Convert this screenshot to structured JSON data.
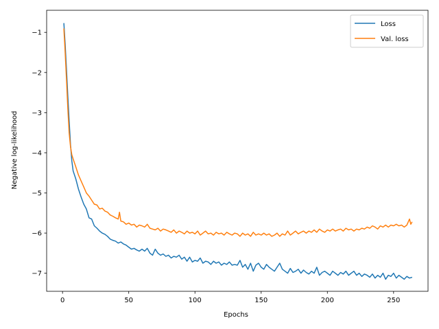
{
  "chart_data": {
    "type": "line",
    "xlabel": "Epochs",
    "ylabel": "Negative log-likelihood",
    "xlim": [
      -12,
      276
    ],
    "ylim": [
      -7.45,
      -0.45
    ],
    "xticks": [
      0,
      50,
      100,
      150,
      200,
      250
    ],
    "yticks": [
      -1,
      -2,
      -3,
      -4,
      -5,
      -6,
      -7
    ],
    "grid": false,
    "legend_position": "top-right",
    "series": [
      {
        "name": "Loss",
        "color": "#1f77b4",
        "points": [
          [
            1,
            -0.77
          ],
          [
            2,
            -1.3
          ],
          [
            3,
            -1.95
          ],
          [
            4,
            -2.6
          ],
          [
            5,
            -3.2
          ],
          [
            6,
            -3.8
          ],
          [
            7,
            -4.2
          ],
          [
            8,
            -4.45
          ],
          [
            10,
            -4.65
          ],
          [
            12,
            -4.9
          ],
          [
            14,
            -5.1
          ],
          [
            16,
            -5.28
          ],
          [
            18,
            -5.4
          ],
          [
            20,
            -5.62
          ],
          [
            22,
            -5.65
          ],
          [
            24,
            -5.82
          ],
          [
            26,
            -5.88
          ],
          [
            28,
            -5.95
          ],
          [
            30,
            -6.0
          ],
          [
            32,
            -6.03
          ],
          [
            34,
            -6.08
          ],
          [
            36,
            -6.15
          ],
          [
            38,
            -6.18
          ],
          [
            40,
            -6.2
          ],
          [
            42,
            -6.25
          ],
          [
            44,
            -6.22
          ],
          [
            46,
            -6.27
          ],
          [
            48,
            -6.3
          ],
          [
            50,
            -6.35
          ],
          [
            52,
            -6.4
          ],
          [
            54,
            -6.38
          ],
          [
            56,
            -6.42
          ],
          [
            58,
            -6.45
          ],
          [
            60,
            -6.4
          ],
          [
            62,
            -6.45
          ],
          [
            64,
            -6.38
          ],
          [
            66,
            -6.5
          ],
          [
            68,
            -6.55
          ],
          [
            70,
            -6.4
          ],
          [
            72,
            -6.5
          ],
          [
            74,
            -6.55
          ],
          [
            76,
            -6.52
          ],
          [
            78,
            -6.58
          ],
          [
            80,
            -6.55
          ],
          [
            82,
            -6.62
          ],
          [
            84,
            -6.58
          ],
          [
            86,
            -6.6
          ],
          [
            88,
            -6.55
          ],
          [
            90,
            -6.65
          ],
          [
            92,
            -6.6
          ],
          [
            94,
            -6.7
          ],
          [
            96,
            -6.6
          ],
          [
            98,
            -6.72
          ],
          [
            100,
            -6.68
          ],
          [
            102,
            -6.7
          ],
          [
            104,
            -6.62
          ],
          [
            106,
            -6.75
          ],
          [
            108,
            -6.7
          ],
          [
            110,
            -6.72
          ],
          [
            112,
            -6.78
          ],
          [
            114,
            -6.7
          ],
          [
            116,
            -6.75
          ],
          [
            118,
            -6.72
          ],
          [
            120,
            -6.8
          ],
          [
            122,
            -6.75
          ],
          [
            124,
            -6.78
          ],
          [
            126,
            -6.72
          ],
          [
            128,
            -6.8
          ],
          [
            130,
            -6.78
          ],
          [
            132,
            -6.8
          ],
          [
            134,
            -6.68
          ],
          [
            136,
            -6.85
          ],
          [
            138,
            -6.78
          ],
          [
            140,
            -6.9
          ],
          [
            142,
            -6.75
          ],
          [
            144,
            -6.95
          ],
          [
            146,
            -6.8
          ],
          [
            148,
            -6.75
          ],
          [
            150,
            -6.85
          ],
          [
            152,
            -6.9
          ],
          [
            154,
            -6.78
          ],
          [
            156,
            -6.85
          ],
          [
            158,
            -6.9
          ],
          [
            160,
            -6.95
          ],
          [
            162,
            -6.85
          ],
          [
            164,
            -6.75
          ],
          [
            166,
            -6.9
          ],
          [
            168,
            -6.95
          ],
          [
            170,
            -7.0
          ],
          [
            172,
            -6.88
          ],
          [
            174,
            -6.98
          ],
          [
            176,
            -6.95
          ],
          [
            178,
            -6.9
          ],
          [
            180,
            -7.0
          ],
          [
            182,
            -6.92
          ],
          [
            184,
            -6.98
          ],
          [
            186,
            -7.02
          ],
          [
            188,
            -6.95
          ],
          [
            190,
            -7.0
          ],
          [
            192,
            -6.85
          ],
          [
            194,
            -7.05
          ],
          [
            196,
            -6.98
          ],
          [
            198,
            -6.95
          ],
          [
            200,
            -7.0
          ],
          [
            202,
            -7.05
          ],
          [
            204,
            -6.95
          ],
          [
            206,
            -7.0
          ],
          [
            208,
            -7.05
          ],
          [
            210,
            -6.98
          ],
          [
            212,
            -7.02
          ],
          [
            214,
            -6.95
          ],
          [
            216,
            -7.05
          ],
          [
            218,
            -7.0
          ],
          [
            220,
            -6.95
          ],
          [
            222,
            -7.05
          ],
          [
            224,
            -7.0
          ],
          [
            226,
            -7.08
          ],
          [
            228,
            -7.02
          ],
          [
            230,
            -7.05
          ],
          [
            232,
            -7.1
          ],
          [
            234,
            -7.02
          ],
          [
            236,
            -7.12
          ],
          [
            238,
            -7.05
          ],
          [
            240,
            -7.1
          ],
          [
            242,
            -7.0
          ],
          [
            244,
            -7.15
          ],
          [
            246,
            -7.05
          ],
          [
            248,
            -7.08
          ],
          [
            250,
            -7.0
          ],
          [
            252,
            -7.12
          ],
          [
            254,
            -7.05
          ],
          [
            256,
            -7.1
          ],
          [
            258,
            -7.15
          ],
          [
            260,
            -7.08
          ],
          [
            262,
            -7.12
          ],
          [
            264,
            -7.1
          ]
        ]
      },
      {
        "name": "Val. loss",
        "color": "#ff7f0e",
        "points": [
          [
            1,
            -0.9
          ],
          [
            2,
            -1.5
          ],
          [
            3,
            -2.2
          ],
          [
            4,
            -2.9
          ],
          [
            5,
            -3.5
          ],
          [
            6,
            -3.85
          ],
          [
            7,
            -4.05
          ],
          [
            8,
            -4.15
          ],
          [
            10,
            -4.35
          ],
          [
            12,
            -4.55
          ],
          [
            14,
            -4.7
          ],
          [
            16,
            -4.85
          ],
          [
            18,
            -5.0
          ],
          [
            20,
            -5.08
          ],
          [
            22,
            -5.18
          ],
          [
            24,
            -5.28
          ],
          [
            26,
            -5.3
          ],
          [
            28,
            -5.4
          ],
          [
            30,
            -5.38
          ],
          [
            32,
            -5.45
          ],
          [
            34,
            -5.48
          ],
          [
            36,
            -5.55
          ],
          [
            38,
            -5.58
          ],
          [
            40,
            -5.62
          ],
          [
            42,
            -5.65
          ],
          [
            43,
            -5.48
          ],
          [
            44,
            -5.7
          ],
          [
            46,
            -5.72
          ],
          [
            48,
            -5.78
          ],
          [
            50,
            -5.75
          ],
          [
            52,
            -5.8
          ],
          [
            54,
            -5.78
          ],
          [
            56,
            -5.85
          ],
          [
            58,
            -5.8
          ],
          [
            60,
            -5.82
          ],
          [
            62,
            -5.85
          ],
          [
            64,
            -5.78
          ],
          [
            66,
            -5.88
          ],
          [
            68,
            -5.9
          ],
          [
            70,
            -5.92
          ],
          [
            72,
            -5.88
          ],
          [
            74,
            -5.95
          ],
          [
            76,
            -5.9
          ],
          [
            78,
            -5.92
          ],
          [
            80,
            -5.95
          ],
          [
            82,
            -5.98
          ],
          [
            84,
            -5.92
          ],
          [
            86,
            -6.0
          ],
          [
            88,
            -5.95
          ],
          [
            90,
            -5.98
          ],
          [
            92,
            -6.02
          ],
          [
            94,
            -5.95
          ],
          [
            96,
            -6.0
          ],
          [
            98,
            -5.98
          ],
          [
            100,
            -6.02
          ],
          [
            102,
            -5.95
          ],
          [
            104,
            -6.05
          ],
          [
            106,
            -6.0
          ],
          [
            108,
            -5.95
          ],
          [
            110,
            -6.02
          ],
          [
            112,
            -6.0
          ],
          [
            114,
            -6.05
          ],
          [
            116,
            -5.98
          ],
          [
            118,
            -6.02
          ],
          [
            120,
            -6.0
          ],
          [
            122,
            -6.05
          ],
          [
            124,
            -5.98
          ],
          [
            126,
            -6.02
          ],
          [
            128,
            -6.05
          ],
          [
            130,
            -6.0
          ],
          [
            132,
            -6.02
          ],
          [
            134,
            -6.08
          ],
          [
            136,
            -6.0
          ],
          [
            138,
            -6.05
          ],
          [
            140,
            -6.02
          ],
          [
            142,
            -6.08
          ],
          [
            144,
            -5.98
          ],
          [
            146,
            -6.05
          ],
          [
            148,
            -6.02
          ],
          [
            150,
            -6.05
          ],
          [
            152,
            -6.0
          ],
          [
            154,
            -6.05
          ],
          [
            156,
            -6.02
          ],
          [
            158,
            -6.08
          ],
          [
            160,
            -6.05
          ],
          [
            162,
            -6.0
          ],
          [
            164,
            -6.08
          ],
          [
            166,
            -6.02
          ],
          [
            168,
            -6.05
          ],
          [
            170,
            -5.95
          ],
          [
            172,
            -6.05
          ],
          [
            174,
            -6.0
          ],
          [
            176,
            -5.95
          ],
          [
            178,
            -6.02
          ],
          [
            180,
            -5.98
          ],
          [
            182,
            -5.95
          ],
          [
            184,
            -6.0
          ],
          [
            186,
            -5.95
          ],
          [
            188,
            -5.98
          ],
          [
            190,
            -5.92
          ],
          [
            192,
            -5.98
          ],
          [
            194,
            -5.9
          ],
          [
            196,
            -5.95
          ],
          [
            198,
            -5.98
          ],
          [
            200,
            -5.92
          ],
          [
            202,
            -5.95
          ],
          [
            204,
            -5.9
          ],
          [
            206,
            -5.95
          ],
          [
            208,
            -5.92
          ],
          [
            210,
            -5.9
          ],
          [
            212,
            -5.95
          ],
          [
            214,
            -5.88
          ],
          [
            216,
            -5.92
          ],
          [
            218,
            -5.9
          ],
          [
            220,
            -5.95
          ],
          [
            222,
            -5.9
          ],
          [
            224,
            -5.92
          ],
          [
            226,
            -5.88
          ],
          [
            228,
            -5.9
          ],
          [
            230,
            -5.85
          ],
          [
            232,
            -5.88
          ],
          [
            234,
            -5.82
          ],
          [
            236,
            -5.85
          ],
          [
            238,
            -5.9
          ],
          [
            240,
            -5.82
          ],
          [
            242,
            -5.85
          ],
          [
            244,
            -5.8
          ],
          [
            246,
            -5.85
          ],
          [
            248,
            -5.8
          ],
          [
            250,
            -5.82
          ],
          [
            252,
            -5.78
          ],
          [
            254,
            -5.82
          ],
          [
            256,
            -5.8
          ],
          [
            258,
            -5.85
          ],
          [
            260,
            -5.8
          ],
          [
            262,
            -5.65
          ],
          [
            263,
            -5.78
          ],
          [
            264,
            -5.72
          ]
        ]
      }
    ]
  }
}
